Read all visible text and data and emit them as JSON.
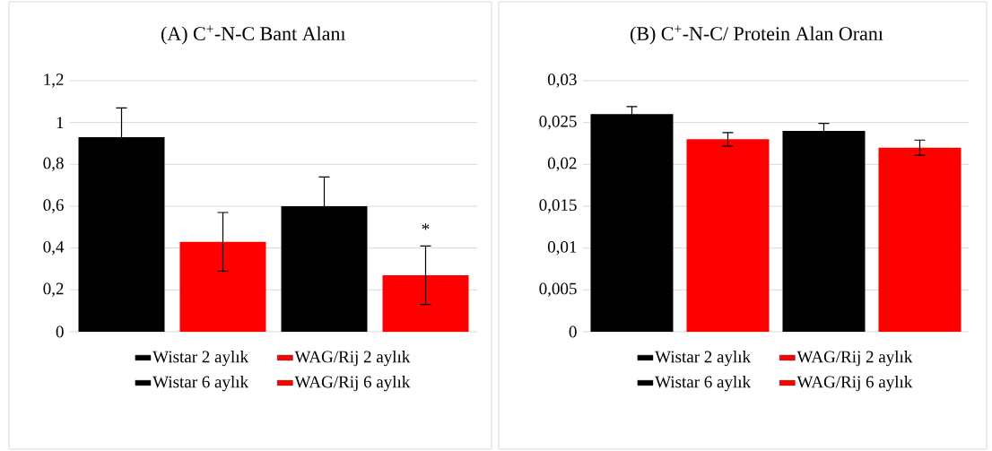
{
  "chart_data": [
    {
      "type": "bar",
      "title": "(A)   C$^{+}$-N-C Bant Alanı",
      "categories": [
        null
      ],
      "series": [
        {
          "name": "Wistar 2 aylık",
          "color": "#000000",
          "values": [
            0.93
          ],
          "errors": [
            0.14
          ]
        },
        {
          "name": "WAG/Rij 2 aylık",
          "color": "#ff0000",
          "values": [
            0.43
          ],
          "errors": [
            0.14
          ]
        },
        {
          "name": "Wistar 6 aylık",
          "color": "#000000",
          "values": [
            0.6
          ],
          "errors": [
            0.14
          ]
        },
        {
          "name": "WAG/Rij 6 aylık",
          "color": "#ff0000",
          "values": [
            0.27
          ],
          "errors": [
            0.14
          ]
        }
      ],
      "ylim": [
        0,
        1.2
      ],
      "yticks": [
        0,
        {
          "value": 0.2,
          "label": "0,2"
        },
        {
          "value": 0.4,
          "label": "0,4"
        },
        {
          "value": 0.6,
          "label": "0,6"
        },
        {
          "value": 0.8,
          "label": "0,8"
        },
        1,
        {
          "value": 1.2,
          "label": "1,2"
        }
      ],
      "grid": "y",
      "legend": "bottom",
      "annotations": [
        "*"
      ]
    },
    {
      "type": "bar",
      "title": "(B)   C$^{+}$-N-C/ Protein Alan Oranı",
      "categories": [
        null
      ],
      "series": [
        {
          "name": "Wistar 2 aylık",
          "color": "#000000",
          "values": [
            0.026
          ],
          "errors": [
            0.0009
          ]
        },
        {
          "name": "WAG/Rij 2 aylık",
          "color": "#ff0000",
          "values": [
            0.023
          ],
          "errors": [
            0.0008
          ]
        },
        {
          "name": "Wistar 6 aylık",
          "color": "#000000",
          "values": [
            0.024
          ],
          "errors": [
            0.0009
          ]
        },
        {
          "name": "WAG/Rij 6 aylık",
          "color": "#ff0000",
          "values": [
            0.022
          ],
          "errors": [
            0.0009
          ]
        }
      ],
      "ylim": [
        0,
        0.03
      ],
      "yticks": [
        0,
        {
          "value": 0.005,
          "label": "0,005"
        },
        {
          "value": 0.01,
          "label": "0,01"
        },
        {
          "value": 0.015,
          "label": "0,015"
        },
        {
          "value": 0.02,
          "label": "0,02"
        },
        {
          "value": 0.025,
          "label": "0,025"
        },
        {
          "value": 0.03,
          "label": "0,03"
        }
      ],
      "grid": "y",
      "legend": "bottom"
    }
  ]
}
